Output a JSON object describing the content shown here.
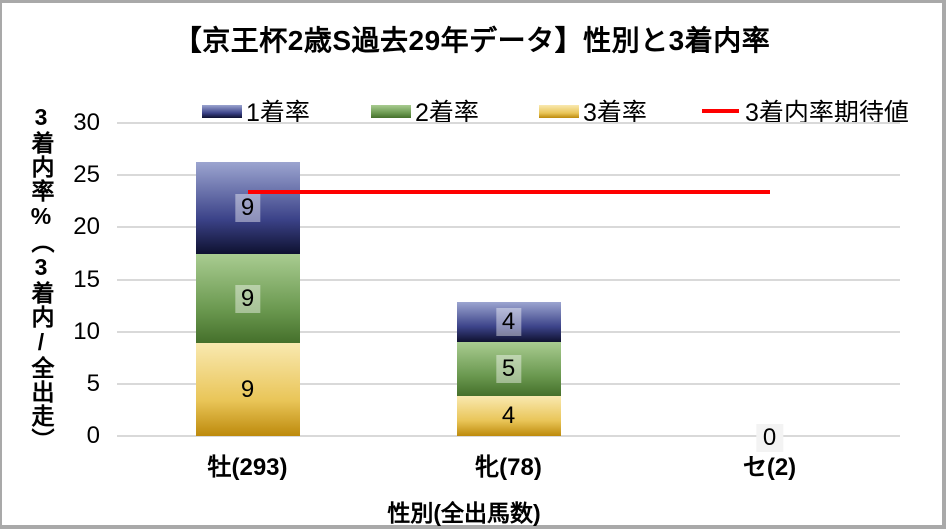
{
  "window": {
    "background": "#ffffff",
    "border_color": "#a9a9a9"
  },
  "chart_data": {
    "type": "bar",
    "subtype": "stacked-bar-with-line-overlay",
    "title": "【京王杯2歳S過去29年データ】性別と3着内率",
    "xlabel": "性別(全出馬数)",
    "ylabel": "3着内率%（3着内/全出走）",
    "categories": [
      "牡(293)",
      "牝(78)",
      "セ(2)"
    ],
    "ylim": [
      0,
      30
    ],
    "ytick_step": 5,
    "grid": true,
    "gridline_color": "#d9d9d9",
    "legend_position": "top",
    "legend_order": [
      "1着率",
      "2着率",
      "3着率",
      "3着内率期待値"
    ],
    "series": [
      {
        "name": "3着率",
        "values": [
          8.87,
          3.85,
          0
        ],
        "labels": [
          "9",
          "4",
          ""
        ],
        "gradient": [
          "#f9e9b0",
          "#e9c558",
          "#bd8a0c"
        ],
        "label_box": false
      },
      {
        "name": "2着率",
        "values": [
          8.53,
          5.13,
          0
        ],
        "labels": [
          "9",
          "5",
          ""
        ],
        "gradient": [
          "#a9cc91",
          "#6b9950",
          "#45702b"
        ],
        "label_box": true
      },
      {
        "name": "1着率",
        "values": [
          8.87,
          3.85,
          0
        ],
        "labels": [
          "9",
          "4",
          ""
        ],
        "gradient": [
          "#9ca5d0",
          "#3c4389",
          "#0e1130"
        ],
        "label_box": true
      }
    ],
    "line_series": {
      "name": "3着内率期待値",
      "value": 23.4,
      "color": "#fe0000",
      "span_categories": [
        0,
        2
      ]
    },
    "zero_label": {
      "text": "0",
      "category_index": 2
    }
  }
}
